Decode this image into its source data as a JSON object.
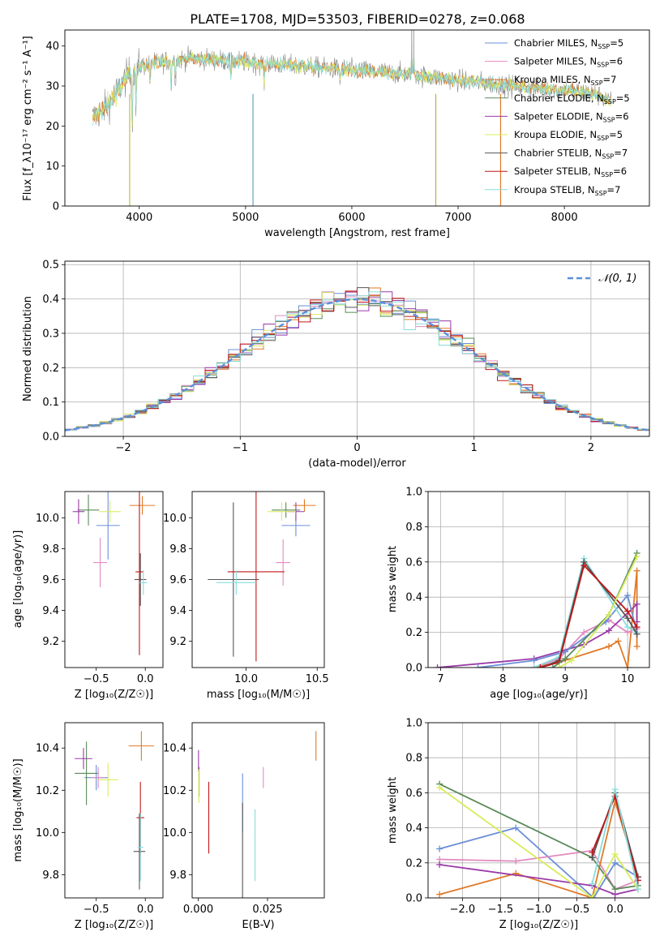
{
  "figure_title": "PLATE=1708, MJD=53503, FIBERID=0278, z=0.068",
  "legend": [
    {
      "label": "Chabrier MILES, N",
      "sub": "SSP",
      "suffix": "=5",
      "color": "#6a8fd8"
    },
    {
      "label": "Salpeter MILES, N",
      "sub": "SSP",
      "suffix": "=6",
      "color": "#e28ac0"
    },
    {
      "label": "Kroupa MILES, N",
      "sub": "SSP",
      "suffix": "=7",
      "color": "#e07a28"
    },
    {
      "label": "Chabrier ELODIE, N",
      "sub": "SSP",
      "suffix": "=5",
      "color": "#5a8a5a"
    },
    {
      "label": "Salpeter ELODIE, N",
      "sub": "SSP",
      "suffix": "=6",
      "color": "#9a3aa8"
    },
    {
      "label": "Kroupa ELODIE, N",
      "sub": "SSP",
      "suffix": "=5",
      "color": "#d8ec5a"
    },
    {
      "label": "Chabrier STELIB, N",
      "sub": "SSP",
      "suffix": "=7",
      "color": "#555555"
    },
    {
      "label": "Salpeter STELIB, N",
      "sub": "SSP",
      "suffix": "=6",
      "color": "#c01818"
    },
    {
      "label": "Kroupa STELIB, N",
      "sub": "SSP",
      "suffix": "=7",
      "color": "#8adcdc"
    }
  ],
  "chart_data": [
    {
      "id": "spectrum",
      "type": "line",
      "xlabel": "wavelength [Angstrom, rest frame]",
      "ylabel": "Flux [f_λ10⁻¹⁷ erg cm⁻² s⁻¹ A⁻¹]",
      "xlim": [
        3300,
        8800
      ],
      "ylim": [
        0,
        44
      ],
      "xticks": [
        4000,
        5000,
        6000,
        7000,
        8000
      ],
      "yticks": [
        0,
        10,
        20,
        30,
        40
      ],
      "continuum": [
        [
          3560,
          22
        ],
        [
          3700,
          25
        ],
        [
          3800,
          29
        ],
        [
          3900,
          33
        ],
        [
          4000,
          35
        ],
        [
          4200,
          36
        ],
        [
          4500,
          37
        ],
        [
          5000,
          36
        ],
        [
          5500,
          35
        ],
        [
          6000,
          34
        ],
        [
          6500,
          33
        ],
        [
          7000,
          31.5
        ],
        [
          7500,
          30
        ],
        [
          8000,
          29
        ],
        [
          8300,
          28
        ],
        [
          8440,
          26
        ]
      ]
    },
    {
      "id": "residuals",
      "type": "line",
      "xlabel": "(data-model)/error",
      "ylabel": "Normed distribution",
      "xlim": [
        -2.5,
        2.5
      ],
      "ylim": [
        0,
        0.51
      ],
      "xticks": [
        -2,
        -1,
        0,
        1,
        2
      ],
      "yticks": [
        0.0,
        0.1,
        0.2,
        0.3,
        0.4,
        0.5
      ],
      "legend_label": "𝒩(0, 1)",
      "grid": true
    },
    {
      "id": "age-vs-Z",
      "type": "scatter",
      "xlabel": "Z [log₁₀(Z/Z☉)]",
      "ylabel": "age  [log₁₀(age/yr)]",
      "xlim": [
        -0.82,
        0.18
      ],
      "ylim": [
        9.03,
        10.17
      ],
      "xticks": [
        -0.5,
        0.0
      ],
      "yticks": [
        9.2,
        9.4,
        9.6,
        9.8,
        10.0
      ],
      "points": [
        {
          "x": -0.38,
          "y": 9.95,
          "xerr": 0.12,
          "yerr": 0.22,
          "color": "#6a8fd8"
        },
        {
          "x": -0.46,
          "y": 9.71,
          "xerr": 0.07,
          "yerr": 0.16,
          "color": "#e28ac0"
        },
        {
          "x": -0.03,
          "y": 10.08,
          "xerr": 0.13,
          "yerr": 0.06,
          "color": "#e07a28"
        },
        {
          "x": -0.58,
          "y": 10.05,
          "xerr": 0.11,
          "yerr": 0.1,
          "color": "#5a8a5a"
        },
        {
          "x": -0.68,
          "y": 10.04,
          "xerr": 0.06,
          "yerr": 0.08,
          "color": "#9a3aa8"
        },
        {
          "x": -0.36,
          "y": 10.04,
          "xerr": 0.11,
          "yerr": 0.07,
          "color": "#d8ec5a"
        },
        {
          "x": -0.05,
          "y": 9.6,
          "xerr": 0.06,
          "yerr": 0.17,
          "color": "#555555"
        },
        {
          "x": -0.06,
          "y": 9.65,
          "xerr": 0.04,
          "yerr": 0.54,
          "color": "#c01818"
        },
        {
          "x": -0.02,
          "y": 9.58,
          "xerr": 0.04,
          "yerr": 0.08,
          "color": "#8adcdc"
        }
      ]
    },
    {
      "id": "age-vs-mass",
      "type": "scatter",
      "xlabel": "mass [log₁₀(M/M☉)]",
      "ylabel": "",
      "xlim": [
        9.62,
        10.55
      ],
      "ylim": [
        9.03,
        10.17
      ],
      "xticks": [
        10.0,
        10.5
      ],
      "yticks": [
        9.2,
        9.4,
        9.6,
        9.8,
        10.0
      ],
      "points": [
        {
          "x": 10.35,
          "y": 9.95,
          "xerr": 0.1,
          "yerr": 0.07,
          "color": "#6a8fd8"
        },
        {
          "x": 10.26,
          "y": 9.71,
          "xerr": 0.05,
          "yerr": 0.15,
          "color": "#e28ac0"
        },
        {
          "x": 10.41,
          "y": 10.08,
          "xerr": 0.08,
          "yerr": 0.04,
          "color": "#e07a28"
        },
        {
          "x": 10.28,
          "y": 10.05,
          "xerr": 0.1,
          "yerr": 0.05,
          "color": "#5a8a5a"
        },
        {
          "x": 10.35,
          "y": 10.04,
          "xerr": 0.06,
          "yerr": 0.06,
          "color": "#9a3aa8"
        },
        {
          "x": 10.25,
          "y": 10.04,
          "xerr": 0.1,
          "yerr": 0.06,
          "color": "#d8ec5a"
        },
        {
          "x": 9.91,
          "y": 9.6,
          "xerr": 0.18,
          "yerr": 0.5,
          "color": "#555555"
        },
        {
          "x": 10.07,
          "y": 9.65,
          "xerr": 0.2,
          "yerr": 0.58,
          "color": "#c01818"
        },
        {
          "x": 9.93,
          "y": 9.58,
          "xerr": 0.14,
          "yerr": 0.08,
          "color": "#8adcdc"
        }
      ]
    },
    {
      "id": "massweight-vs-age",
      "type": "line",
      "xlabel": "age  [log₁₀(age/yr)]",
      "ylabel": "mass weight",
      "xlim": [
        6.8,
        10.35
      ],
      "ylim": [
        0.0,
        1.0
      ],
      "xticks": [
        7,
        8,
        9,
        10
      ],
      "yticks": [
        0.0,
        0.2,
        0.4,
        0.6,
        0.8,
        1.0
      ],
      "grid": true,
      "series": [
        {
          "color": "#e07a28",
          "points": [
            [
              8.5,
              0.0
            ],
            [
              8.9,
              0.03
            ],
            [
              9.7,
              0.12
            ],
            [
              9.85,
              0.15
            ],
            [
              10.0,
              0.0
            ],
            [
              10.15,
              0.55
            ],
            [
              10.15,
              0.12
            ]
          ]
        },
        {
          "color": "#e28ac0",
          "points": [
            [
              8.5,
              0.0
            ],
            [
              8.9,
              0.05
            ],
            [
              9.3,
              0.2
            ],
            [
              9.7,
              0.27
            ],
            [
              10.0,
              0.2
            ],
            [
              10.15,
              0.22
            ]
          ]
        },
        {
          "color": "#9a3aa8",
          "points": [
            [
              6.95,
              0.0
            ],
            [
              8.5,
              0.05
            ],
            [
              9.3,
              0.13
            ],
            [
              9.7,
              0.21
            ],
            [
              10.15,
              0.36
            ],
            [
              10.15,
              0.26
            ]
          ]
        },
        {
          "color": "#6a8fd8",
          "points": [
            [
              7.6,
              0.0
            ],
            [
              8.5,
              0.04
            ],
            [
              9.0,
              0.09
            ],
            [
              9.65,
              0.26
            ],
            [
              10.0,
              0.41
            ],
            [
              10.15,
              0.2
            ]
          ]
        },
        {
          "color": "#8adcdc",
          "points": [
            [
              8.5,
              0.0
            ],
            [
              8.9,
              0.06
            ],
            [
              9.3,
              0.62
            ],
            [
              10.0,
              0.23
            ],
            [
              10.15,
              0.2
            ]
          ]
        },
        {
          "color": "#555555",
          "points": [
            [
              8.6,
              0.0
            ],
            [
              8.9,
              0.04
            ],
            [
              9.3,
              0.6
            ],
            [
              10.0,
              0.28
            ],
            [
              10.15,
              0.19
            ]
          ]
        },
        {
          "color": "#c01818",
          "points": [
            [
              8.6,
              0.0
            ],
            [
              8.9,
              0.03
            ],
            [
              9.3,
              0.58
            ],
            [
              10.0,
              0.32
            ],
            [
              10.15,
              0.23
            ]
          ]
        },
        {
          "color": "#5a8a5a",
          "points": [
            [
              8.8,
              0.0
            ],
            [
              9.0,
              0.05
            ],
            [
              9.7,
              0.3
            ],
            [
              10.15,
              0.65
            ]
          ]
        },
        {
          "color": "#d8ec5a",
          "points": [
            [
              8.9,
              0.0
            ],
            [
              9.1,
              0.04
            ],
            [
              9.7,
              0.3
            ],
            [
              10.15,
              0.63
            ]
          ]
        }
      ]
    },
    {
      "id": "mass-vs-Z",
      "type": "scatter",
      "xlabel": "Z [log₁₀(Z/Z☉)]",
      "ylabel": "mass [log₁₀(M/M☉)]",
      "xlim": [
        -0.82,
        0.18
      ],
      "ylim": [
        9.69,
        10.52
      ],
      "xticks": [
        -0.5,
        0.0
      ],
      "yticks": [
        9.8,
        10.0,
        10.2,
        10.4
      ],
      "points": [
        {
          "x": -0.5,
          "y": 10.26,
          "xerr": 0.12,
          "yerr": 0.06,
          "color": "#6a8fd8"
        },
        {
          "x": -0.48,
          "y": 10.26,
          "xerr": 0.07,
          "yerr": 0.05,
          "color": "#e28ac0"
        },
        {
          "x": -0.04,
          "y": 10.41,
          "xerr": 0.13,
          "yerr": 0.07,
          "color": "#e07a28"
        },
        {
          "x": -0.6,
          "y": 10.28,
          "xerr": 0.12,
          "yerr": 0.15,
          "color": "#5a8a5a"
        },
        {
          "x": -0.63,
          "y": 10.35,
          "xerr": 0.09,
          "yerr": 0.05,
          "color": "#9a3aa8"
        },
        {
          "x": -0.38,
          "y": 10.25,
          "xerr": 0.1,
          "yerr": 0.08,
          "color": "#d8ec5a"
        },
        {
          "x": -0.06,
          "y": 9.91,
          "xerr": 0.06,
          "yerr": 0.18,
          "color": "#555555"
        },
        {
          "x": -0.05,
          "y": 10.07,
          "xerr": 0.04,
          "yerr": 0.17,
          "color": "#c01818"
        },
        {
          "x": -0.05,
          "y": 9.93,
          "xerr": 0.03,
          "yerr": 0.16,
          "color": "#8adcdc"
        }
      ]
    },
    {
      "id": "mass-vs-ebv",
      "type": "scatter",
      "xlabel": "E(B-V)",
      "ylabel": "",
      "xlim": [
        -0.0022,
        0.0455
      ],
      "ylim": [
        9.69,
        10.52
      ],
      "xticks": [
        0.0,
        0.025
      ],
      "xtick_labels": [
        "0.000",
        "0.025"
      ],
      "yticks": [
        9.8,
        10.0,
        10.2,
        10.4
      ],
      "points": [
        {
          "x": 0.016,
          "y": 10.14,
          "yerr": 0.14,
          "color": "#6a8fd8"
        },
        {
          "x": 0.0235,
          "y": 10.26,
          "yerr": 0.05,
          "color": "#e28ac0"
        },
        {
          "x": 0.0425,
          "y": 10.41,
          "yerr": 0.07,
          "color": "#e07a28"
        },
        {
          "x": 0.0003,
          "y": 10.24,
          "yerr": 0.07,
          "color": "#5a8a5a"
        },
        {
          "x": 0.0001,
          "y": 10.34,
          "yerr": 0.05,
          "color": "#9a3aa8"
        },
        {
          "x": 0.0002,
          "y": 10.22,
          "yerr": 0.08,
          "color": "#d8ec5a"
        },
        {
          "x": 0.016,
          "y": 9.91,
          "yerr": 0.23,
          "color": "#555555"
        },
        {
          "x": 0.0038,
          "y": 10.07,
          "yerr": 0.17,
          "color": "#c01818"
        },
        {
          "x": 0.0205,
          "y": 9.94,
          "yerr": 0.17,
          "color": "#8adcdc"
        }
      ]
    },
    {
      "id": "massweight-vs-Z",
      "type": "line",
      "xlabel": "Z [log₁₀(Z/Z☉)]",
      "ylabel": "mass weight",
      "xlim": [
        -2.45,
        0.45
      ],
      "ylim": [
        0.0,
        1.0
      ],
      "xticks": [
        -2.0,
        -1.5,
        -1.0,
        -0.5,
        0.0
      ],
      "yticks": [
        0.0,
        0.2,
        0.4,
        0.6,
        0.8,
        1.0
      ],
      "grid": true,
      "series": [
        {
          "color": "#6a8fd8",
          "points": [
            [
              -2.3,
              0.28
            ],
            [
              -1.3,
              0.4
            ],
            [
              -0.28,
              0.0
            ],
            [
              0.0,
              0.2
            ],
            [
              0.3,
              0.12
            ]
          ]
        },
        {
          "color": "#e28ac0",
          "points": [
            [
              -2.3,
              0.22
            ],
            [
              -1.3,
              0.21
            ],
            [
              -0.3,
              0.27
            ],
            [
              0.0,
              0.05
            ],
            [
              0.3,
              0.1
            ]
          ]
        },
        {
          "color": "#e07a28",
          "points": [
            [
              -2.3,
              0.02
            ],
            [
              -1.3,
              0.14
            ],
            [
              -0.3,
              0.0
            ],
            [
              0.0,
              0.55
            ],
            [
              0.3,
              0.12
            ]
          ]
        },
        {
          "color": "#9a3aa8",
          "points": [
            [
              -2.3,
              0.19
            ],
            [
              -0.3,
              0.07
            ],
            [
              0.0,
              0.02
            ],
            [
              0.3,
              0.05
            ]
          ]
        },
        {
          "color": "#5a8a5a",
          "points": [
            [
              -2.3,
              0.65
            ],
            [
              -0.3,
              0.23
            ],
            [
              0.0,
              0.05
            ],
            [
              0.3,
              0.07
            ]
          ]
        },
        {
          "color": "#d8ec5a",
          "points": [
            [
              -2.3,
              0.63
            ],
            [
              -0.3,
              0.0
            ],
            [
              0.0,
              0.25
            ],
            [
              0.3,
              0.05
            ]
          ]
        },
        {
          "color": "#555555",
          "points": [
            [
              -0.3,
              0.23
            ],
            [
              0.0,
              0.6
            ],
            [
              0.3,
              0.12
            ]
          ]
        },
        {
          "color": "#c01818",
          "points": [
            [
              -0.3,
              0.26
            ],
            [
              0.0,
              0.58
            ],
            [
              0.3,
              0.1
            ]
          ]
        },
        {
          "color": "#8adcdc",
          "points": [
            [
              -0.3,
              0.08
            ],
            [
              0.0,
              0.62
            ],
            [
              0.3,
              0.05
            ]
          ]
        }
      ]
    }
  ]
}
